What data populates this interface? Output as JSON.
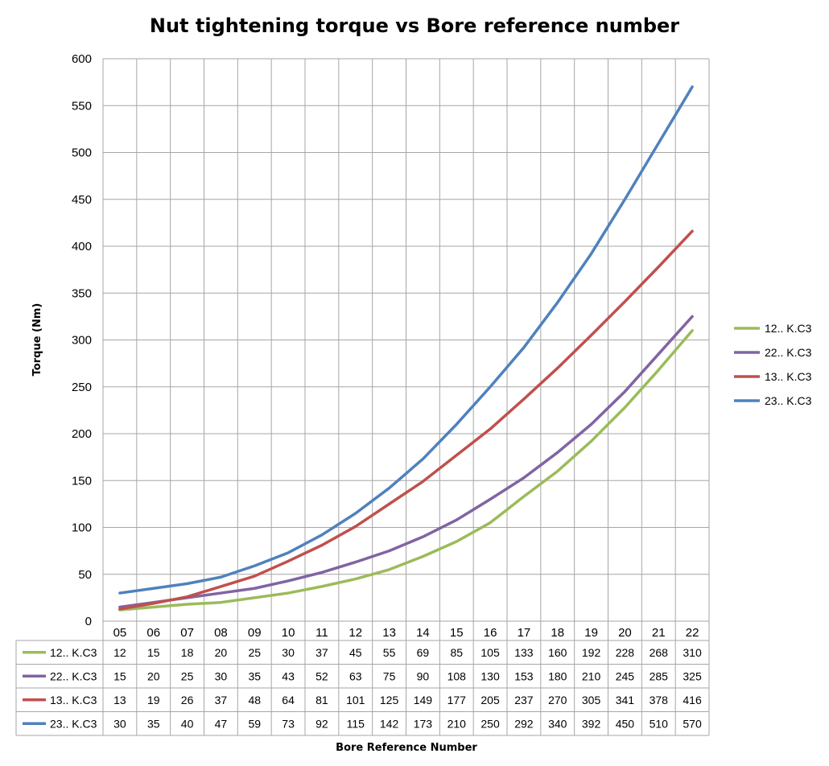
{
  "chart_data": {
    "type": "line",
    "title": "Nut tightening torque vs Bore reference number",
    "xlabel": "Bore Reference Number",
    "ylabel": "Torque (Nm)",
    "ylim": [
      0,
      600
    ],
    "yticks": [
      0,
      50,
      100,
      150,
      200,
      250,
      300,
      350,
      400,
      450,
      500,
      550,
      600
    ],
    "grid": true,
    "legend_position": "right",
    "data_table": true,
    "categories": [
      "05",
      "06",
      "07",
      "08",
      "09",
      "10",
      "11",
      "12",
      "13",
      "14",
      "15",
      "16",
      "17",
      "18",
      "19",
      "20",
      "21",
      "22"
    ],
    "series": [
      {
        "name": "12.. K.C3",
        "color": "#9BBB59",
        "values": [
          12,
          15,
          18,
          20,
          25,
          30,
          37,
          45,
          55,
          69,
          85,
          105,
          133,
          160,
          192,
          228,
          268,
          310
        ]
      },
      {
        "name": "22.. K.C3",
        "color": "#8064A2",
        "values": [
          15,
          20,
          25,
          30,
          35,
          43,
          52,
          63,
          75,
          90,
          108,
          130,
          153,
          180,
          210,
          245,
          285,
          325
        ]
      },
      {
        "name": "13.. K.C3",
        "color": "#C0504D",
        "values": [
          13,
          19,
          26,
          37,
          48,
          64,
          81,
          101,
          125,
          149,
          177,
          205,
          237,
          270,
          305,
          341,
          378,
          416
        ]
      },
      {
        "name": "23.. K.C3",
        "color": "#4F81BD",
        "values": [
          30,
          35,
          40,
          47,
          59,
          73,
          92,
          115,
          142,
          173,
          210,
          250,
          292,
          340,
          392,
          450,
          510,
          570
        ]
      }
    ]
  }
}
